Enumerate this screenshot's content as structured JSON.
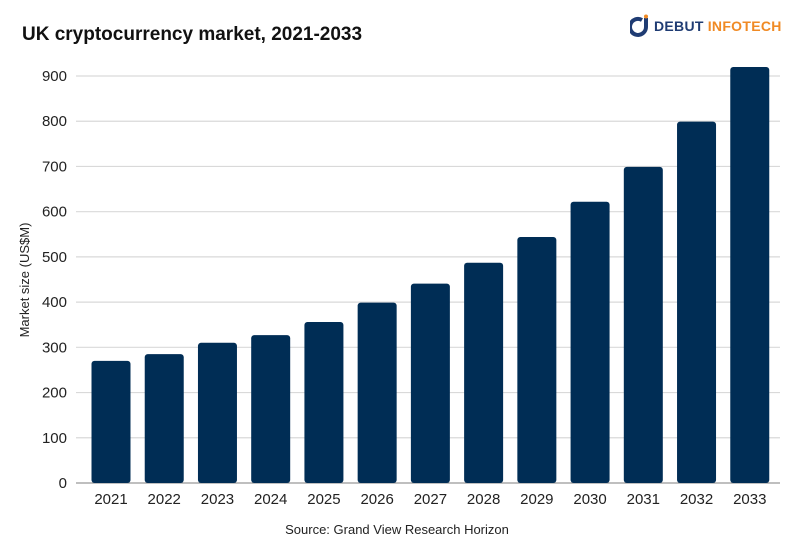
{
  "logo": {
    "part1": "DEBUT",
    "part2": "INFOTECH",
    "colors": {
      "primary": "#1f3c73",
      "accent": "#f08a24"
    }
  },
  "source": "Source: Grand View Research Horizon",
  "chart_data": {
    "type": "bar",
    "title": "UK cryptocurrency market, 2021-2033",
    "xlabel": "",
    "ylabel": "Market size (US$M)",
    "ylim": [
      0,
      900
    ],
    "yticks": [
      0,
      100,
      200,
      300,
      400,
      500,
      600,
      700,
      800,
      900
    ],
    "grid": true,
    "bar_color": "#002d55",
    "categories": [
      "2021",
      "2022",
      "2023",
      "2024",
      "2025",
      "2026",
      "2027",
      "2028",
      "2029",
      "2030",
      "2031",
      "2032",
      "2033"
    ],
    "values": [
      270,
      285,
      310,
      327,
      356,
      399,
      441,
      487,
      544,
      622,
      699,
      799,
      920
    ]
  }
}
